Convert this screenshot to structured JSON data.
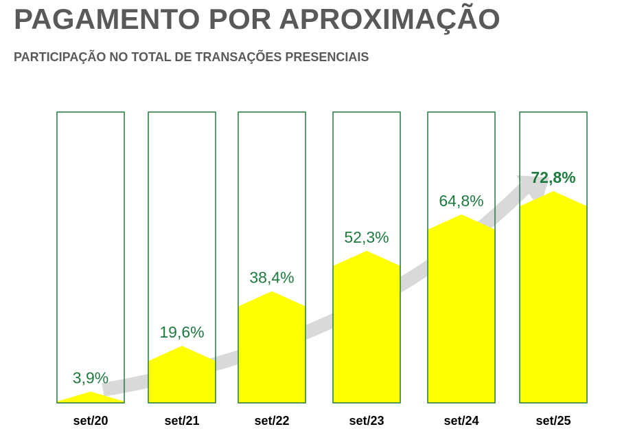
{
  "title": "PAGAMENTO POR APROXIMAÇÃO",
  "subtitle": "PARTICIPAÇÃO NO TOTAL DE TRANSAÇÕES PRESENCIAIS",
  "colors": {
    "bar_fill": "#ffff00",
    "bar_outline": "#1e7a3e",
    "value_label": "#1e7a3e",
    "category_label": "#000000",
    "trend_arrow": "#d9d9d9",
    "title_text": "#58595b"
  },
  "chart_data": {
    "type": "bar",
    "title": "PAGAMENTO POR APROXIMAÇÃO",
    "subtitle": "PARTICIPAÇÃO NO TOTAL DE TRANSAÇÕES PRESENCIAIS",
    "categories": [
      "set/20",
      "set/21",
      "set/22",
      "set/23",
      "set/24",
      "set/25"
    ],
    "values": [
      3.9,
      19.6,
      38.4,
      52.3,
      64.8,
      72.8
    ],
    "value_labels": [
      "3,9%",
      "19,6%",
      "38,4%",
      "52,3%",
      "64,8%",
      "72,8%"
    ],
    "unit": "%",
    "ylim": [
      0,
      100
    ],
    "highlighted_index": 5,
    "grid": false,
    "legend": "none",
    "trend_arrow": true
  }
}
